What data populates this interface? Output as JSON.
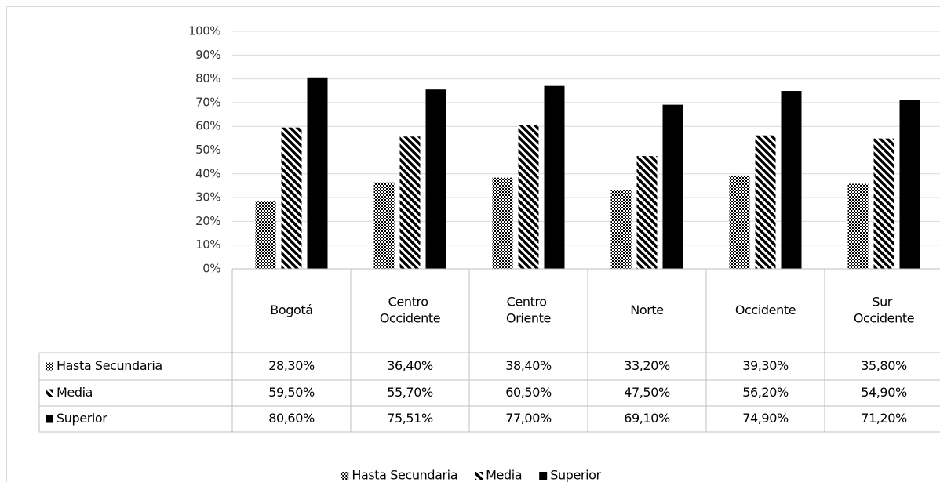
{
  "chart_data": {
    "type": "bar",
    "categories": [
      "Bogotá",
      "Centro Occidente",
      "Centro Oriente",
      "Norte",
      "Occidente",
      "Sur Occidente"
    ],
    "series": [
      {
        "name": "Hasta Secundaria",
        "color": "#000000",
        "pattern": "checker",
        "values": [
          28.3,
          36.4,
          38.4,
          33.2,
          39.3,
          35.8
        ],
        "value_labels": [
          "28,30%",
          "36,40%",
          "38,40%",
          "33,20%",
          "39,30%",
          "35,80%"
        ]
      },
      {
        "name": "Media",
        "color": "#000000",
        "pattern": "diagonal",
        "values": [
          59.5,
          55.7,
          60.5,
          47.5,
          56.2,
          54.9
        ],
        "value_labels": [
          "59,50%",
          "55,70%",
          "60,50%",
          "47,50%",
          "56,20%",
          "54,90%"
        ]
      },
      {
        "name": "Superior",
        "color": "#000000",
        "pattern": "solid",
        "values": [
          80.6,
          75.51,
          77.0,
          69.1,
          74.9,
          71.2
        ],
        "value_labels": [
          "80,60%",
          "75,51%",
          "77,00%",
          "69,10%",
          "74,90%",
          "71,20%"
        ]
      }
    ],
    "ylim": [
      0,
      100
    ],
    "yticks": [
      {
        "value": 0,
        "label": "0%"
      },
      {
        "value": 10,
        "label": "10%"
      },
      {
        "value": 20,
        "label": "20%"
      },
      {
        "value": 30,
        "label": "30%"
      },
      {
        "value": 40,
        "label": "40%"
      },
      {
        "value": 50,
        "label": "50%"
      },
      {
        "value": 60,
        "label": "60%"
      },
      {
        "value": 70,
        "label": "70%"
      },
      {
        "value": 80,
        "label": "80%"
      },
      {
        "value": 90,
        "label": "90%"
      },
      {
        "value": 100,
        "label": "100%"
      }
    ],
    "grid": true,
    "legend": "bottom",
    "data_table": true
  }
}
